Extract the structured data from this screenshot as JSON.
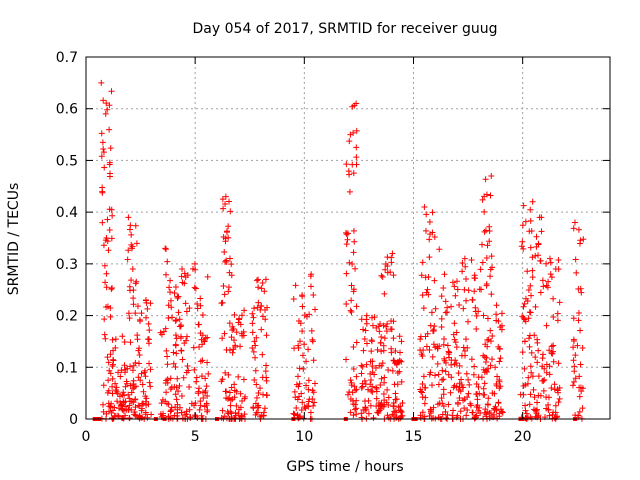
{
  "chart_data": {
    "type": "scatter",
    "title": "Day 054 of 2017, SRMTID for receiver guug",
    "xlabel": "GPS time / hours",
    "ylabel": "SRMTID / TECUs",
    "xlim": [
      0,
      24
    ],
    "ylim": [
      0,
      0.7
    ],
    "xticks": [
      0,
      5,
      10,
      15,
      20
    ],
    "xtick_labels": [
      "0",
      "5",
      "10",
      "15",
      "20"
    ],
    "yticks": [
      0,
      0.1,
      0.2,
      0.3,
      0.4,
      0.5,
      0.6,
      0.7
    ],
    "ytick_labels": [
      "0",
      "0.1",
      "0.2",
      "0.3",
      "0.4",
      "0.5",
      "0.6",
      "0.7"
    ],
    "grid": true,
    "marker": "+",
    "series": [
      {
        "name": "SRMTID",
        "color": "#ff0000",
        "clusters": [
          {
            "x_start": 0.7,
            "x_end": 1.2,
            "y_max": 0.65,
            "count": 70
          },
          {
            "x_start": 1.2,
            "x_end": 1.9,
            "y_max": 0.16,
            "count": 60
          },
          {
            "x_start": 1.9,
            "x_end": 2.4,
            "y_max": 0.39,
            "count": 60
          },
          {
            "x_start": 2.4,
            "x_end": 3.0,
            "y_max": 0.23,
            "count": 50
          },
          {
            "x_start": 3.4,
            "x_end": 3.9,
            "y_max": 0.33,
            "count": 40
          },
          {
            "x_start": 3.9,
            "x_end": 4.8,
            "y_max": 0.29,
            "count": 80
          },
          {
            "x_start": 4.8,
            "x_end": 5.6,
            "y_max": 0.3,
            "count": 60
          },
          {
            "x_start": 6.2,
            "x_end": 6.7,
            "y_max": 0.43,
            "count": 60
          },
          {
            "x_start": 6.7,
            "x_end": 7.3,
            "y_max": 0.21,
            "count": 50
          },
          {
            "x_start": 7.6,
            "x_end": 8.3,
            "y_max": 0.27,
            "count": 60
          },
          {
            "x_start": 9.5,
            "x_end": 10.5,
            "y_max": 0.28,
            "count": 70
          },
          {
            "x_start": 11.9,
            "x_end": 12.4,
            "y_max": 0.61,
            "count": 60
          },
          {
            "x_start": 12.6,
            "x_end": 13.4,
            "y_max": 0.2,
            "count": 60
          },
          {
            "x_start": 13.4,
            "x_end": 14.1,
            "y_max": 0.32,
            "count": 70
          },
          {
            "x_start": 14.1,
            "x_end": 14.5,
            "y_max": 0.16,
            "count": 40
          },
          {
            "x_start": 15.3,
            "x_end": 16.2,
            "y_max": 0.41,
            "count": 80
          },
          {
            "x_start": 16.2,
            "x_end": 17.2,
            "y_max": 0.28,
            "count": 80
          },
          {
            "x_start": 17.2,
            "x_end": 18.1,
            "y_max": 0.31,
            "count": 70
          },
          {
            "x_start": 18.1,
            "x_end": 18.6,
            "y_max": 0.47,
            "count": 60
          },
          {
            "x_start": 18.6,
            "x_end": 19.1,
            "y_max": 0.22,
            "count": 40
          },
          {
            "x_start": 19.9,
            "x_end": 20.5,
            "y_max": 0.42,
            "count": 60
          },
          {
            "x_start": 20.5,
            "x_end": 21.1,
            "y_max": 0.39,
            "count": 50
          },
          {
            "x_start": 21.1,
            "x_end": 21.7,
            "y_max": 0.31,
            "count": 50
          },
          {
            "x_start": 22.3,
            "x_end": 22.8,
            "y_max": 0.38,
            "count": 40
          }
        ],
        "zero_points_x": [
          0.4,
          0.5,
          0.6,
          3.2,
          3.6,
          6.0,
          9.5,
          11.9,
          15.0,
          15.1,
          19.9,
          20.0,
          22.4
        ]
      }
    ]
  }
}
